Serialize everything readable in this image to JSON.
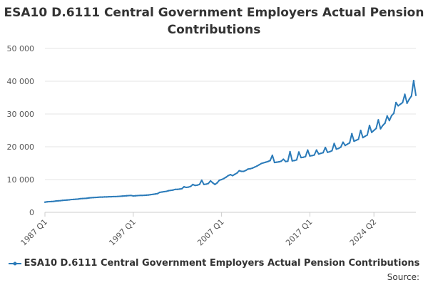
{
  "chart_data": {
    "type": "line",
    "title": "ESA10 D.6111 Central Government Employers Actual Pension Contributions",
    "xlabel": "",
    "ylabel": "",
    "ylim": [
      0,
      50000
    ],
    "yticks": [
      0,
      10000,
      20000,
      30000,
      40000,
      50000
    ],
    "ytick_labels": [
      "0",
      "10 000",
      "20 000",
      "30 000",
      "40 000",
      "50 000"
    ],
    "xtick_labels": [
      "1987 Q1",
      "1997 Q1",
      "2007 Q1",
      "2017 Q1",
      "2024 Q2"
    ],
    "x_start": "1987 Q1",
    "x_end": "2024 Q2",
    "grid": "horizontal",
    "legend_position": "bottom",
    "series": [
      {
        "name": "ESA10 D.6111 Central Government Employers Actual Pension Contributions",
        "color": "#2b7bb9",
        "values": [
          3100,
          3200,
          3250,
          3300,
          3350,
          3450,
          3500,
          3550,
          3650,
          3700,
          3750,
          3800,
          3900,
          3950,
          4000,
          4050,
          4150,
          4200,
          4250,
          4300,
          4400,
          4450,
          4500,
          4550,
          4600,
          4650,
          4650,
          4700,
          4700,
          4750,
          4750,
          4800,
          4800,
          4850,
          4900,
          4950,
          5000,
          5050,
          5100,
          5150,
          5000,
          5050,
          5100,
          5150,
          5150,
          5200,
          5250,
          5300,
          5400,
          5500,
          5600,
          5700,
          6100,
          6200,
          6300,
          6400,
          6600,
          6700,
          6800,
          7000,
          7000,
          7100,
          7200,
          7800,
          7600,
          7700,
          7900,
          8500,
          8200,
          8300,
          8500,
          9800,
          8500,
          8600,
          8800,
          9600,
          9000,
          8500,
          9000,
          9800,
          10000,
          10300,
          10700,
          11200,
          11500,
          11200,
          11600,
          12000,
          12700,
          12500,
          12500,
          12800,
          13200,
          13300,
          13500,
          13800,
          14100,
          14500,
          14900,
          15100,
          15300,
          15500,
          15800,
          17400,
          15200,
          15300,
          15400,
          15600,
          16200,
          15500,
          15600,
          18500,
          15700,
          15800,
          16000,
          18400,
          16700,
          16800,
          17000,
          19000,
          17200,
          17300,
          17500,
          19000,
          17800,
          18000,
          18200,
          19800,
          18300,
          18500,
          18800,
          21000,
          19300,
          19500,
          19900,
          21400,
          20400,
          20800,
          21200,
          24000,
          21700,
          22000,
          22300,
          25000,
          22800,
          23200,
          23600,
          26500,
          24400,
          25000,
          25600,
          28200,
          25500,
          26500,
          27200,
          29400,
          28000,
          29500,
          30200,
          33500,
          32500,
          33000,
          33500,
          36000,
          33300,
          34500,
          35500,
          40200,
          35700
        ]
      }
    ]
  },
  "legend": {
    "label": "ESA10 D.6111 Central Government Employers Actual Pension Contributions"
  },
  "source_label": "Source:"
}
